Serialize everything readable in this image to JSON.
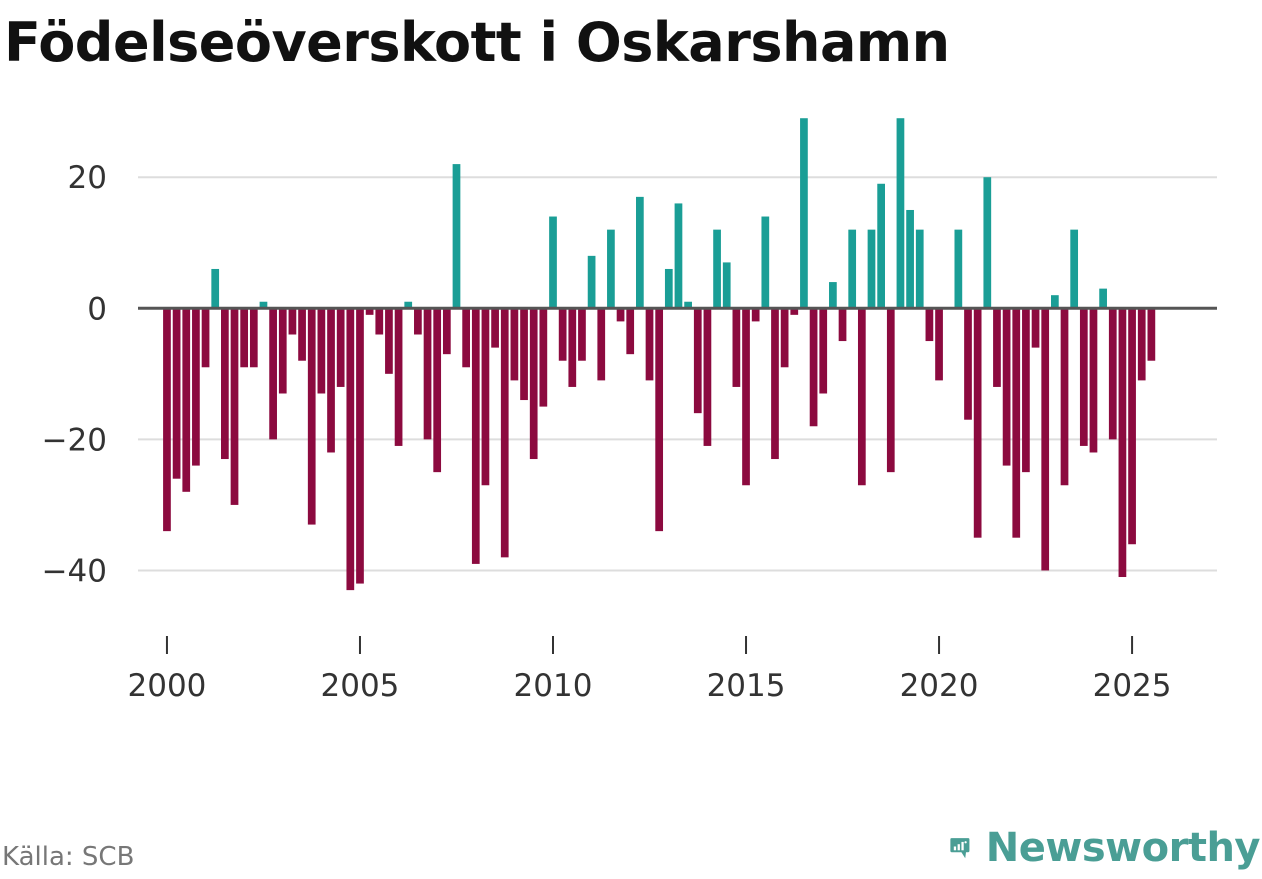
{
  "title": "Födelseöverskott i Oskarshamn",
  "source": "Källa: SCB",
  "brand": {
    "name": "Newsworthy",
    "icon": "newsworthy-logo-icon",
    "color": "#4a9e95"
  },
  "colors": {
    "positive": "#1a9e96",
    "negative": "#8c0a3f",
    "grid": "#dddddd",
    "zero": "#555555"
  },
  "chart_data": {
    "type": "bar",
    "title": "Födelseöverskott i Oskarshamn",
    "xlabel": "",
    "ylabel": "",
    "x_start": 2000,
    "periods_per_year": 4,
    "xlim": [
      1999.25,
      2027.2
    ],
    "ylim": [
      -50,
      33
    ],
    "x_ticks": [
      2000,
      2005,
      2010,
      2015,
      2020,
      2025
    ],
    "x_tick_labels": [
      "2000",
      "2005",
      "2010",
      "2015",
      "2020",
      "2025"
    ],
    "y_ticks": [
      -40,
      -20,
      0,
      20
    ],
    "y_tick_labels": [
      "−40",
      "−20",
      "0",
      "20"
    ],
    "grid": true,
    "values": [
      -34,
      -26,
      -28,
      -24,
      -9,
      6,
      -23,
      -30,
      -9,
      -9,
      1,
      -20,
      -13,
      -4,
      -8,
      -33,
      -13,
      -22,
      -12,
      -43,
      -42,
      -1,
      -4,
      -10,
      -21,
      1,
      -4,
      -20,
      -25,
      -7,
      22,
      -9,
      -39,
      -27,
      -6,
      -38,
      -11,
      -14,
      -23,
      -15,
      14,
      -8,
      -12,
      -8,
      8,
      -11,
      12,
      -2,
      -7,
      17,
      -11,
      -34,
      6,
      16,
      1,
      -16,
      -21,
      12,
      7,
      -12,
      -27,
      -2,
      14,
      -23,
      -9,
      -1,
      29,
      -18,
      -13,
      4,
      -5,
      12,
      -27,
      12,
      19,
      -25,
      29,
      15,
      12,
      -5,
      -11,
      0,
      12,
      -17,
      -35,
      20,
      -12,
      -24,
      -35,
      -25,
      -6,
      -40,
      2,
      -27,
      12,
      -21,
      -22,
      3,
      -20,
      -41,
      -36,
      -11,
      -8
    ]
  }
}
